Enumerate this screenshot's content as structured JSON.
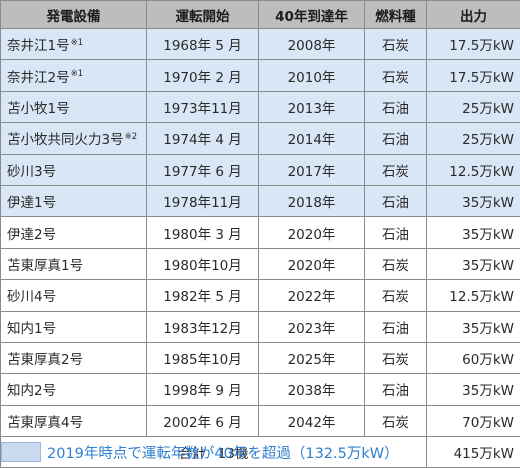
{
  "table": {
    "headers": [
      "発電設備",
      "運転開始",
      "40年到達年",
      "燃料種",
      "出力"
    ],
    "rows": [
      {
        "name": "奈井江1号",
        "note": "※1",
        "start": "1968年 5 月",
        "year40": "2008年",
        "fuel": "石炭",
        "output": "17.5万kW",
        "over40": true
      },
      {
        "name": "奈井江2号",
        "note": "※1",
        "start": "1970年 2 月",
        "year40": "2010年",
        "fuel": "石炭",
        "output": "17.5万kW",
        "over40": true
      },
      {
        "name": "苫小牧1号",
        "note": "",
        "start": "1973年11月",
        "year40": "2013年",
        "fuel": "石油",
        "output": "25万kW",
        "over40": true
      },
      {
        "name": "苫小牧共同火力3号",
        "note": "※2",
        "start": "1974年 4 月",
        "year40": "2014年",
        "fuel": "石油",
        "output": "25万kW",
        "over40": true
      },
      {
        "name": "砂川3号",
        "note": "",
        "start": "1977年 6 月",
        "year40": "2017年",
        "fuel": "石炭",
        "output": "12.5万kW",
        "over40": true
      },
      {
        "name": "伊達1号",
        "note": "",
        "start": "1978年11月",
        "year40": "2018年",
        "fuel": "石油",
        "output": "35万kW",
        "over40": true
      },
      {
        "name": "伊達2号",
        "note": "",
        "start": "1980年 3 月",
        "year40": "2020年",
        "fuel": "石油",
        "output": "35万kW",
        "over40": false
      },
      {
        "name": "苫東厚真1号",
        "note": "",
        "start": "1980年10月",
        "year40": "2020年",
        "fuel": "石炭",
        "output": "35万kW",
        "over40": false
      },
      {
        "name": "砂川4号",
        "note": "",
        "start": "1982年 5 月",
        "year40": "2022年",
        "fuel": "石炭",
        "output": "12.5万kW",
        "over40": false
      },
      {
        "name": "知内1号",
        "note": "",
        "start": "1983年12月",
        "year40": "2023年",
        "fuel": "石油",
        "output": "35万kW",
        "over40": false
      },
      {
        "name": "苫東厚真2号",
        "note": "",
        "start": "1985年10月",
        "year40": "2025年",
        "fuel": "石炭",
        "output": "60万kW",
        "over40": false
      },
      {
        "name": "知内2号",
        "note": "",
        "start": "1998年 9 月",
        "year40": "2038年",
        "fuel": "石油",
        "output": "35万kW",
        "over40": false
      },
      {
        "name": "苫東厚真4号",
        "note": "",
        "start": "2002年 6 月",
        "year40": "2042年",
        "fuel": "石炭",
        "output": "70万kW",
        "over40": false
      }
    ],
    "total": {
      "label": "合計",
      "count": "13機",
      "output": "415万kW"
    }
  },
  "legend": {
    "swatch_color": "#c9daf1",
    "text": "2019年時点で運転年数が40年を超過（132.5万kW）"
  }
}
